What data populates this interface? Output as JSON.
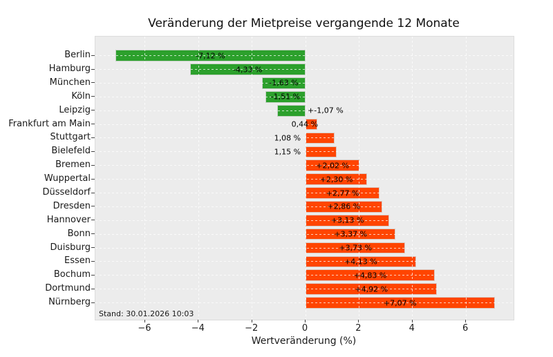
{
  "chart_data": {
    "type": "bar",
    "orientation": "horizontal",
    "title": "Veränderung der Mietpreise vergangende 12 Monate",
    "xlabel": "Wertveränderung (%)",
    "footnote": "Stand: 30.01.2026 10:03",
    "legend": "none",
    "grid": "dashed, drawn over bars",
    "categories": [
      "Berlin",
      "Hamburg",
      "München",
      "Köln",
      "Leipzig",
      "Frankfurt am Main",
      "Stuttgart",
      "Bielefeld",
      "Bremen",
      "Wuppertal",
      "Düsseldorf",
      "Dresden",
      "Hannover",
      "Bonn",
      "Duisburg",
      "Essen",
      "Bochum",
      "Dortmund",
      "Nürnberg"
    ],
    "values": [
      -7.12,
      -4.33,
      -1.63,
      -1.51,
      -1.07,
      0.44,
      1.08,
      1.15,
      2.02,
      2.3,
      2.77,
      2.86,
      3.13,
      3.37,
      3.73,
      4.13,
      4.83,
      4.92,
      7.07
    ],
    "bar_labels": [
      "-7,12 %",
      "-4,33 %",
      "-1,63 %",
      "-1,51 %",
      "+-1,07 %",
      "0,44 %",
      "1,08 %",
      "1,15 %",
      "+2,02 %",
      "+2,30 %",
      "+2,77 %",
      "+2,86 %",
      "+3,13 %",
      "+3,37 %",
      "+3,73 %",
      "+4,13 %",
      "+4,83 %",
      "+4,92 %",
      "+7,07 %"
    ],
    "label_placement": [
      "center",
      "center",
      "center",
      "center",
      "after-zero",
      "at-end",
      "before-zero",
      "before-zero",
      "center",
      "center",
      "center",
      "center",
      "center",
      "center",
      "center",
      "center",
      "center",
      "center",
      "center"
    ],
    "xticks": [
      -6,
      -4,
      -2,
      0,
      2,
      4,
      6
    ],
    "xtick_labels": [
      "−6",
      "−4",
      "−2",
      "0",
      "2",
      "4",
      "6"
    ],
    "xlim": [
      -7.86,
      7.78
    ]
  },
  "colors": {
    "positive_bar": "#FF4500",
    "negative_bar": "#2CA02C",
    "plot_background": "#ECECEC",
    "figure_background": "#FFFFFF",
    "grid_line": "rgba(255,255,255,0.75)",
    "bar_edge": "#D6D6D6",
    "text": "#1A1A1A"
  }
}
